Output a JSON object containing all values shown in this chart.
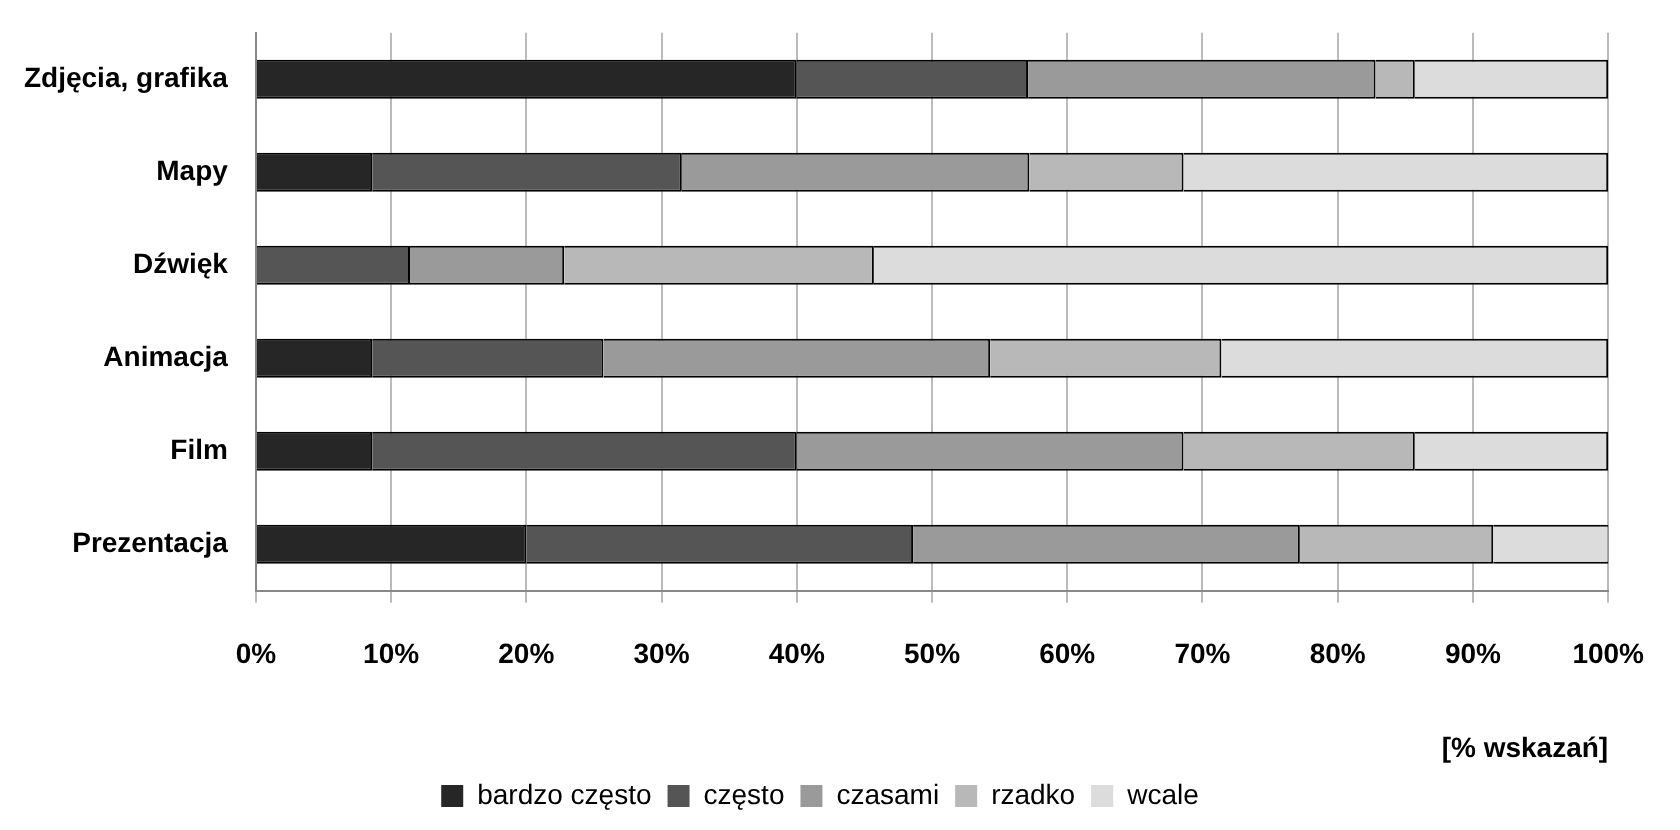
{
  "chart_data": {
    "type": "bar",
    "orientation": "horizontal",
    "stacked": true,
    "categories": [
      "Zdjęcia, grafika",
      "Mapy",
      "Dźwięk",
      "Animacja",
      "Film",
      "Prezentacja"
    ],
    "series": [
      {
        "name": "bardzo często",
        "color": "#262626",
        "values": [
          40,
          8.6,
          0,
          8.6,
          8.6,
          20
        ]
      },
      {
        "name": "często",
        "color": "#555555",
        "values": [
          17.1,
          22.9,
          11.4,
          17.1,
          31.4,
          28.6
        ]
      },
      {
        "name": "czasami",
        "color": "#9a9a9a",
        "values": [
          25.7,
          25.7,
          11.4,
          28.6,
          28.6,
          28.6
        ]
      },
      {
        "name": "rzadko",
        "color": "#b8b8b8",
        "values": [
          2.9,
          11.4,
          22.9,
          17.1,
          17.1,
          14.3
        ]
      },
      {
        "name": "wcale",
        "color": "#dcdcdc",
        "values": [
          14.3,
          31.4,
          54.3,
          28.6,
          14.3,
          8.6
        ]
      }
    ],
    "xlabel": "[% wskazań]",
    "xlim": [
      0,
      100
    ],
    "xticks": [
      {
        "value": 0,
        "label": "0%"
      },
      {
        "value": 10,
        "label": "10%"
      },
      {
        "value": 20,
        "label": "20%"
      },
      {
        "value": 30,
        "label": "30%"
      },
      {
        "value": 40,
        "label": "40%"
      },
      {
        "value": 50,
        "label": "50%"
      },
      {
        "value": 60,
        "label": "60%"
      },
      {
        "value": 70,
        "label": "70%"
      },
      {
        "value": 80,
        "label": "80%"
      },
      {
        "value": 90,
        "label": "90%"
      },
      {
        "value": 100,
        "label": "100%"
      }
    ],
    "grid": "x",
    "legend": "bottom"
  }
}
